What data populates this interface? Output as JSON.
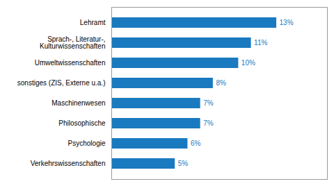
{
  "chart_data": {
    "type": "bar",
    "orientation": "horizontal",
    "categories": [
      "Verkehrswissenschaften",
      "Psychologie",
      "Philosophische",
      "Maschinenwesen",
      "sonstiges (ZIS, Externe u.a.)",
      "Umweltwissenschaften",
      "Sprach-, Literatur-,\nKulturwissenschaften",
      "Lehramt"
    ],
    "values": [
      5,
      6,
      7,
      7,
      8,
      10,
      11,
      13
    ],
    "value_labels": [
      "5%",
      "6%",
      "7%",
      "7%",
      "8%",
      "10%",
      "11%",
      "13%"
    ],
    "color": "#1a7abf",
    "xlim": [
      0,
      17
    ],
    "data_labels": true,
    "tick_labels": "y",
    "grid": false
  }
}
